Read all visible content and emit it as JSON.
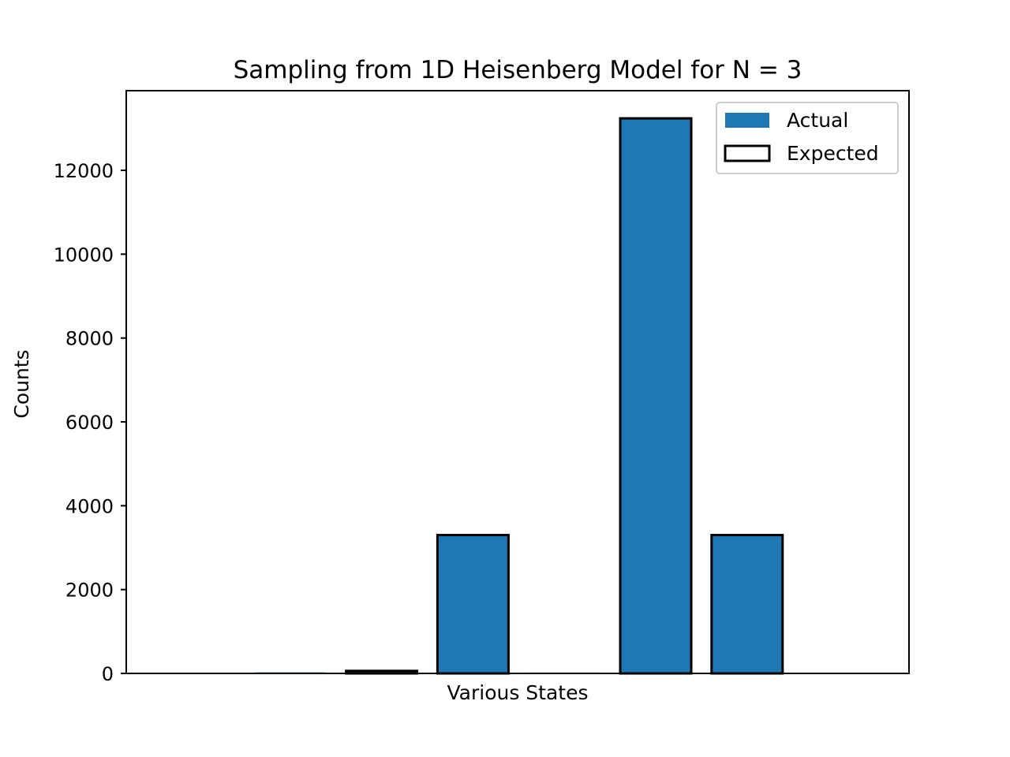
{
  "chart_data": {
    "type": "bar",
    "title": "Sampling from 1D Heisenberg Model for N = 3",
    "xlabel": "Various States",
    "ylabel": "Counts",
    "ylim": [
      0,
      13900
    ],
    "yticks": [
      0,
      2000,
      4000,
      6000,
      8000,
      10000,
      12000
    ],
    "ytick_labels": [
      "0",
      "2000",
      "4000",
      "6000",
      "8000",
      "10000",
      "12000"
    ],
    "categories": [
      "",
      "",
      "",
      "",
      "",
      "",
      "",
      ""
    ],
    "series": [
      {
        "name": "Actual",
        "style": "filled",
        "color": "#1f77b4",
        "values": [
          10,
          25,
          80,
          3310,
          20,
          13250,
          3310,
          10
        ]
      },
      {
        "name": "Expected",
        "style": "outline",
        "color": "#000000",
        "values": [
          0,
          0,
          60,
          3300,
          0,
          13240,
          3300,
          0
        ]
      }
    ],
    "grid": false,
    "legend_position": "top-right"
  }
}
